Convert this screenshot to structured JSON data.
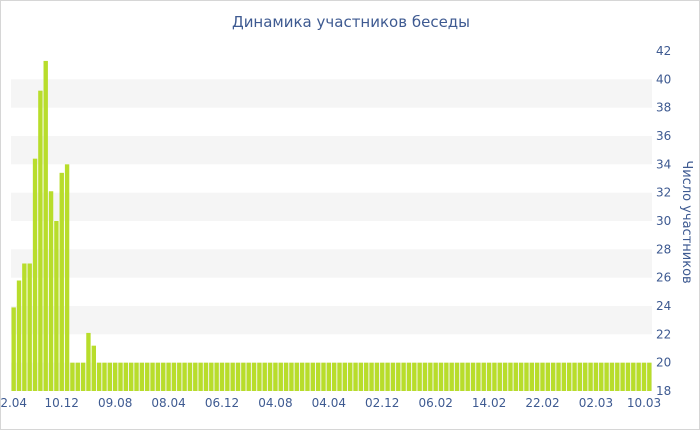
{
  "chart_data": {
    "type": "bar",
    "title": "Динамика участников беседы",
    "ylabel": "Число участников",
    "ylim": [
      18,
      42
    ],
    "y_ticks": [
      18,
      20,
      22,
      24,
      26,
      28,
      30,
      32,
      34,
      36,
      38,
      40,
      42
    ],
    "y_axis_side": "right",
    "x_tick_labels": [
      "2.04",
      "10.12",
      "09.08",
      "08.04",
      "06.12",
      "04.08",
      "04.04",
      "02.12",
      "06.02",
      "14.02",
      "22.02",
      "02.03",
      "10.03"
    ],
    "x_tick_indices": [
      0,
      9,
      19,
      29,
      39,
      49,
      59,
      69,
      79,
      89,
      99,
      109,
      118
    ],
    "grid": "horizontal bands",
    "colors": {
      "bar": "#b8dd2b",
      "band": "#f5f5f5",
      "text": "#3e5a91"
    },
    "values": [
      23.9,
      25.8,
      27.0,
      27.0,
      34.4,
      39.2,
      41.3,
      32.1,
      30.0,
      33.4,
      34.0,
      20.0,
      20.0,
      20.0,
      22.1,
      21.2,
      20.0,
      20.0,
      20.0,
      20.0,
      20,
      20,
      20,
      20,
      20,
      20,
      20,
      20,
      20,
      20,
      20,
      20,
      20,
      20,
      20,
      20,
      20,
      20,
      20,
      20,
      20,
      20,
      20,
      20,
      20,
      20,
      20,
      20,
      20,
      20,
      20,
      20,
      20,
      20,
      20,
      20,
      20,
      20,
      20,
      20,
      20,
      20,
      20,
      20,
      20,
      20,
      20,
      20,
      20,
      20,
      20,
      20,
      20,
      20,
      20,
      20,
      20,
      20,
      20,
      20,
      20,
      20,
      20,
      20,
      20,
      20,
      20,
      20,
      20,
      20,
      20,
      20,
      20,
      20,
      20,
      20,
      20,
      20,
      20,
      20,
      20,
      20,
      20,
      20,
      20,
      20,
      20,
      20,
      20,
      20,
      20,
      20,
      20,
      20,
      20,
      20,
      20,
      20,
      20,
      20
    ]
  }
}
